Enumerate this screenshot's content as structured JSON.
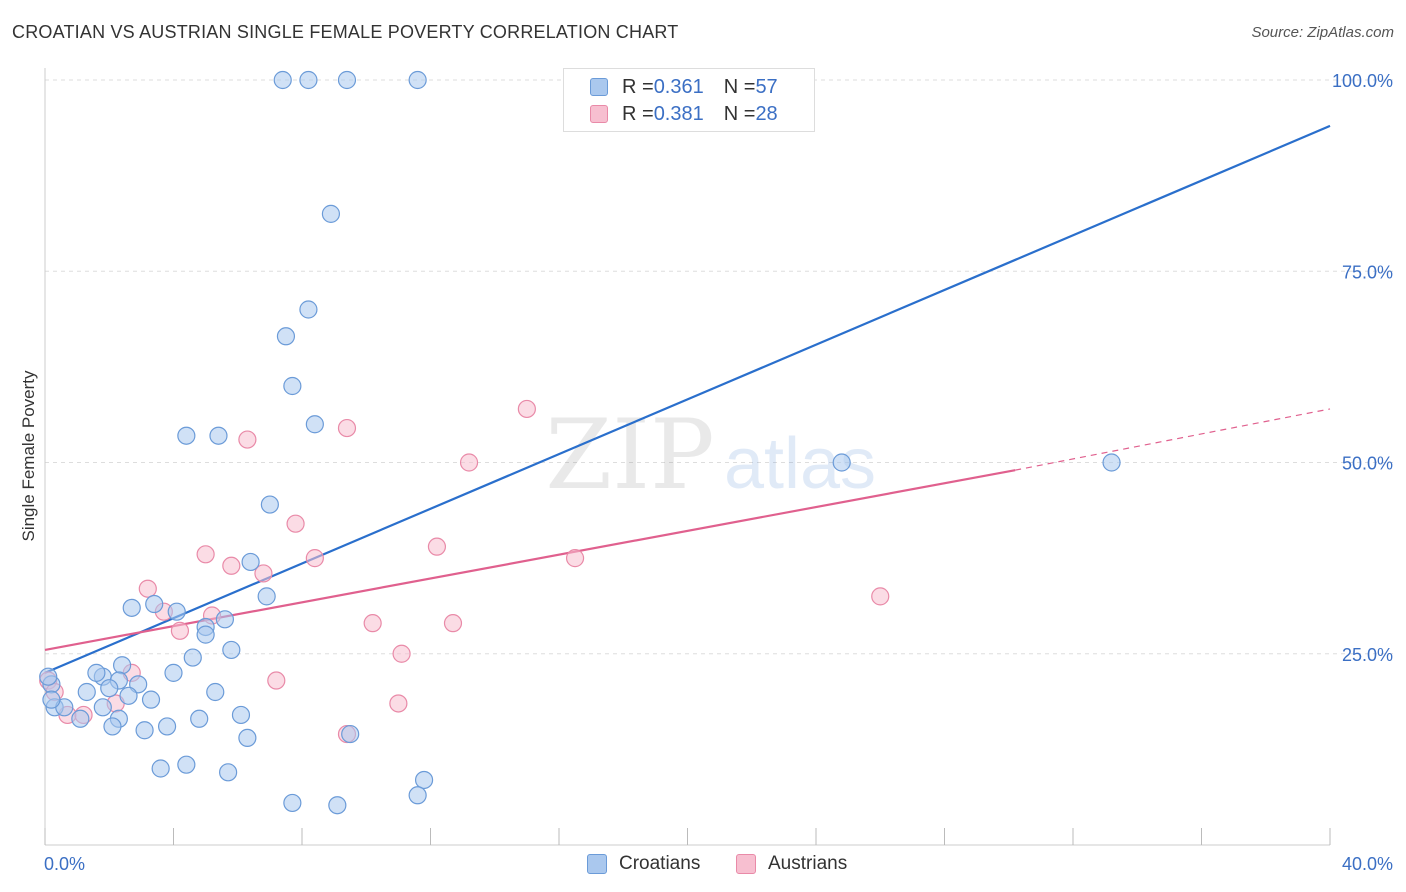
{
  "title": "CROATIAN VS AUSTRIAN SINGLE FEMALE POVERTY CORRELATION CHART",
  "source": "Source: ZipAtlas.com",
  "watermark": {
    "zip": "ZIP",
    "atlas": "atlas"
  },
  "legend": {
    "rows": [
      {
        "r_label": "R = ",
        "r_value": "0.361",
        "n_label": "N = ",
        "n_value": "57"
      },
      {
        "r_label": "R = ",
        "r_value": "0.381",
        "n_label": "N = ",
        "n_value": "28"
      }
    ]
  },
  "bottom_legend": {
    "croatians": "Croatians",
    "austrians": "Austrians"
  },
  "colors": {
    "croatians_fill": "#aac8ee",
    "croatians_stroke": "#6b9bd8",
    "croatians_line": "#2a6fcc",
    "austrians_fill": "#f7bfd0",
    "austrians_stroke": "#e98aa8",
    "austrians_line": "#e0608e",
    "tick_label": "#3b6fc4"
  },
  "chart_data": {
    "type": "scatter",
    "title": "CROATIAN VS AUSTRIAN SINGLE FEMALE POVERTY CORRELATION CHART",
    "xlabel": "",
    "ylabel": "Single Female Poverty",
    "xlim": [
      0,
      40
    ],
    "ylim": [
      0,
      102
    ],
    "x_tick_labels": [
      "0.0%",
      "40.0%"
    ],
    "y_ticks": [
      25,
      50,
      75,
      100
    ],
    "y_tick_labels": [
      "25.0%",
      "50.0%",
      "75.0%",
      "100.0%"
    ],
    "grid": true,
    "series": [
      {
        "name": "Croatians",
        "points": [
          [
            7.4,
            100
          ],
          [
            8.2,
            100
          ],
          [
            9.4,
            100
          ],
          [
            11.6,
            100
          ],
          [
            8.9,
            82.5
          ],
          [
            8.2,
            70
          ],
          [
            7.5,
            66.5
          ],
          [
            7.7,
            60
          ],
          [
            8.4,
            55
          ],
          [
            4.4,
            53.5
          ],
          [
            5.4,
            53.5
          ],
          [
            7.0,
            44.5
          ],
          [
            6.4,
            37
          ],
          [
            6.9,
            32.5
          ],
          [
            2.7,
            31
          ],
          [
            3.4,
            31.5
          ],
          [
            4.1,
            30.5
          ],
          [
            5.0,
            28.5
          ],
          [
            5.6,
            29.5
          ],
          [
            5.0,
            27.5
          ],
          [
            5.8,
            25.5
          ],
          [
            4.6,
            24.5
          ],
          [
            2.4,
            23.5
          ],
          [
            1.8,
            22
          ],
          [
            1.6,
            22.5
          ],
          [
            2.3,
            21.5
          ],
          [
            4.0,
            22.5
          ],
          [
            2.9,
            21
          ],
          [
            0.2,
            21
          ],
          [
            1.3,
            20
          ],
          [
            2.0,
            20.5
          ],
          [
            5.3,
            20
          ],
          [
            2.6,
            19.5
          ],
          [
            3.3,
            19
          ],
          [
            0.3,
            18
          ],
          [
            0.6,
            18
          ],
          [
            1.8,
            18
          ],
          [
            1.1,
            16.5
          ],
          [
            2.3,
            16.5
          ],
          [
            4.8,
            16.5
          ],
          [
            6.1,
            17
          ],
          [
            2.1,
            15.5
          ],
          [
            3.1,
            15
          ],
          [
            3.8,
            15.5
          ],
          [
            6.3,
            14
          ],
          [
            9.5,
            14.5
          ],
          [
            3.6,
            10
          ],
          [
            4.4,
            10.5
          ],
          [
            5.7,
            9.5
          ],
          [
            11.8,
            8.5
          ],
          [
            11.6,
            6.5
          ],
          [
            7.7,
            5.5
          ],
          [
            9.1,
            5.2
          ],
          [
            24.8,
            50
          ],
          [
            33.2,
            50
          ],
          [
            0.1,
            22
          ],
          [
            0.2,
            19
          ]
        ]
      },
      {
        "name": "Austrians",
        "points": [
          [
            15.0,
            57
          ],
          [
            9.4,
            54.5
          ],
          [
            6.3,
            53
          ],
          [
            13.2,
            50
          ],
          [
            7.8,
            42
          ],
          [
            12.2,
            39
          ],
          [
            5.0,
            38
          ],
          [
            8.4,
            37.5
          ],
          [
            16.5,
            37.5
          ],
          [
            5.8,
            36.5
          ],
          [
            6.8,
            35.5
          ],
          [
            3.2,
            33.5
          ],
          [
            3.7,
            30.5
          ],
          [
            5.2,
            30
          ],
          [
            4.2,
            28
          ],
          [
            10.2,
            29
          ],
          [
            12.7,
            29
          ],
          [
            26.0,
            32.5
          ],
          [
            11.1,
            25
          ],
          [
            2.7,
            22.5
          ],
          [
            7.2,
            21.5
          ],
          [
            0.1,
            21.5
          ],
          [
            11.0,
            18.5
          ],
          [
            2.2,
            18.5
          ],
          [
            0.7,
            17
          ],
          [
            1.2,
            17
          ],
          [
            9.4,
            14.5
          ],
          [
            0.3,
            20
          ]
        ]
      }
    ],
    "trend_lines": [
      {
        "name": "Croatians",
        "x": [
          0,
          40
        ],
        "y": [
          22.5,
          94
        ]
      },
      {
        "name": "Austrians",
        "x": [
          0,
          30.2
        ],
        "y": [
          25.5,
          49
        ],
        "dashed_extension_to": [
          40,
          57
        ]
      }
    ]
  }
}
